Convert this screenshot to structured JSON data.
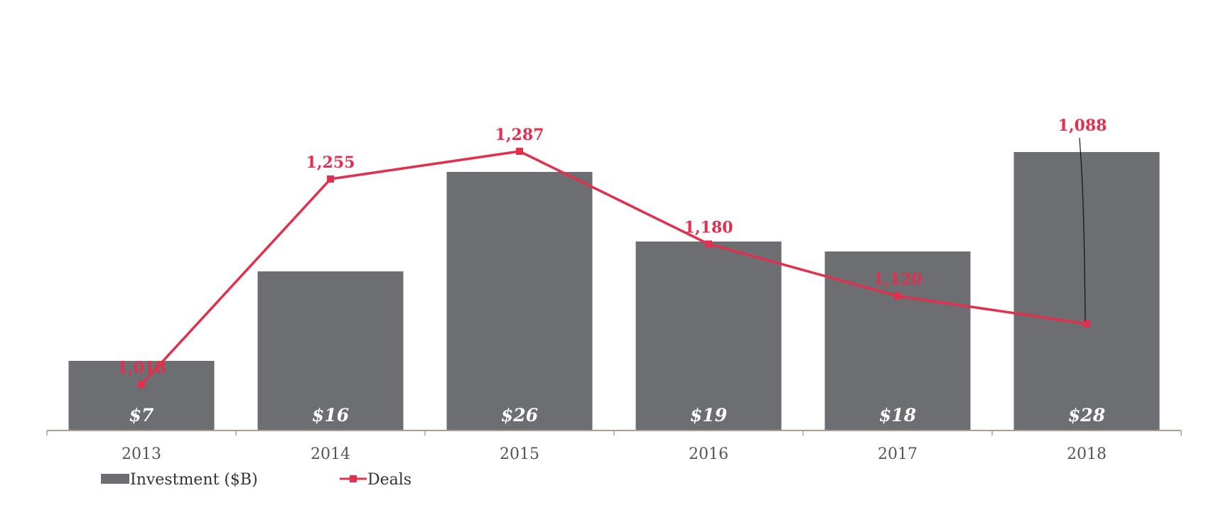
{
  "chart_data": {
    "type": "bar",
    "categories": [
      "2013",
      "2014",
      "2015",
      "2016",
      "2017",
      "2018"
    ],
    "series": [
      {
        "name": "Investment ($B)",
        "type": "bar",
        "values": [
          7,
          16,
          26,
          19,
          18,
          28
        ],
        "value_labels": [
          "$7",
          "$16",
          "$26",
          "$19",
          "$18",
          "$28"
        ],
        "color": "#6d6e71"
      },
      {
        "name": "Deals",
        "type": "line",
        "values": [
          1018,
          1255,
          1287,
          1180,
          1120,
          1088
        ],
        "value_labels": [
          "1,018",
          "1,255",
          "1,287",
          "1,180",
          "1,120",
          "1,088"
        ],
        "color": "#e0304e"
      }
    ],
    "title": "",
    "xlabel": "",
    "ylabel": "",
    "legend_position": "bottom-left",
    "grid": false,
    "axis_color": "#a89f91"
  }
}
